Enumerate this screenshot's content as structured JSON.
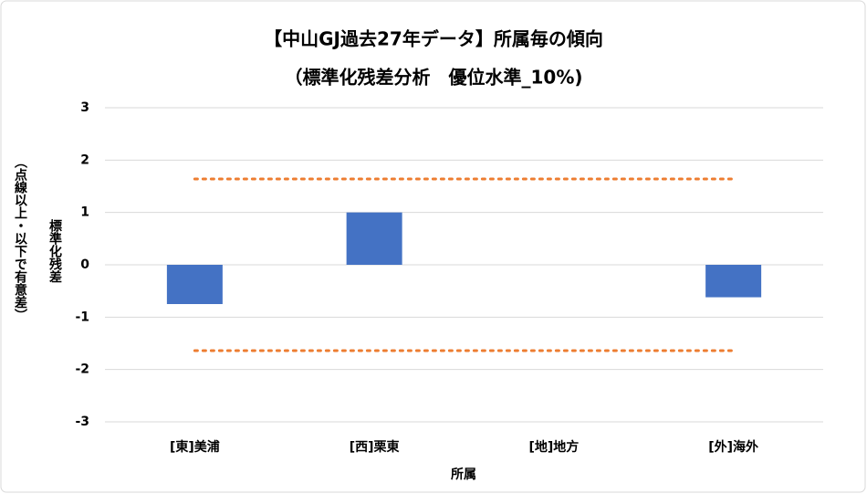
{
  "chart_data": {
    "type": "bar",
    "title": "【中山GJ過去27年データ】所属毎の傾向",
    "subtitle": "（標準化残差分析　優位水準_10%)",
    "y_label": "標準化残差",
    "y_label_note": "（点線以上・以下で有意差）",
    "x_label": "所属",
    "categories": [
      "[東]美浦",
      "[西]栗東",
      "[地]地方",
      "[外]海外"
    ],
    "values": [
      -0.75,
      1.0,
      0,
      -0.62
    ],
    "color": "#4472c4",
    "reference_lines": [
      1.64,
      -1.64
    ],
    "reference_color": "#ed7d31",
    "ylim": [
      -3,
      3
    ],
    "yticks": [
      3,
      2,
      1,
      0,
      -1,
      -2,
      -3
    ],
    "grid": true
  }
}
